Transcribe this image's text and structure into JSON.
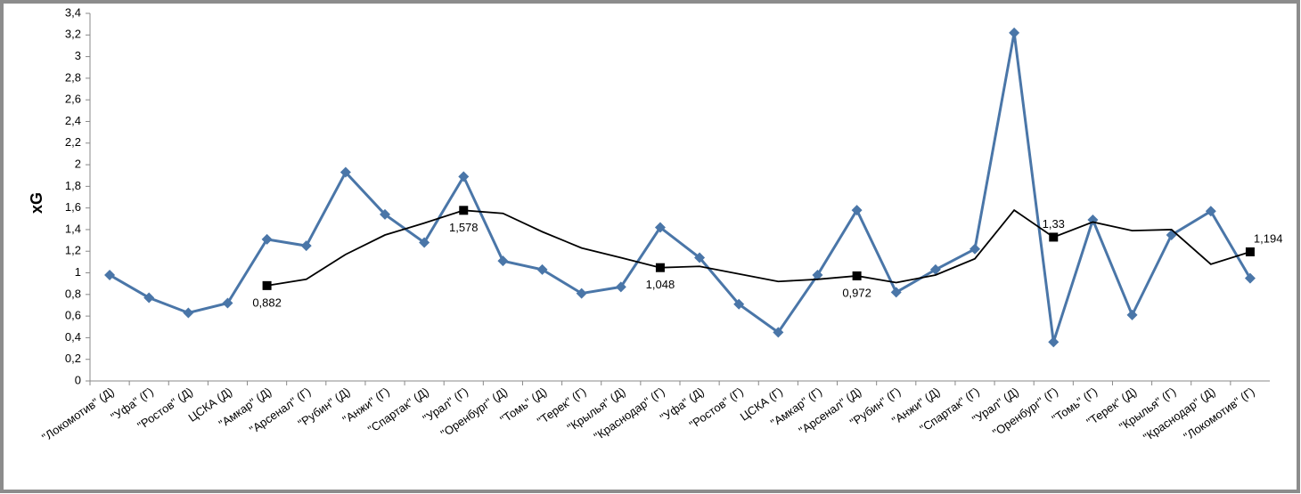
{
  "chart_data": {
    "type": "line",
    "y_label": "xG",
    "categories": [
      "\"Локомотив\" (Д)",
      "\"Уфа\" (Г)",
      "\"Ростов\" (Д)",
      "ЦСКА (Д)",
      "\"Амкар\" (Д)",
      "\"Арсенал\" (Г)",
      "\"Рубин\" (Д)",
      "\"Анжи\" (Г)",
      "\"Спартак\" (Д)",
      "\"Урал\" (Г)",
      "\"Оренбург\" (Д)",
      "\"Томь\" (Д)",
      "\"Терек\" (Г)",
      "\"Крылья\" (Д)",
      "\"Краснодар\" (Г)",
      "\"Уфа\" (Д)",
      "\"Ростов\" (Г)",
      "ЦСКА (Г)",
      "\"Амкар\" (Г)",
      "\"Арсенал\" (Д)",
      "\"Рубин\" (Г)",
      "\"Анжи\" (Д)",
      "\"Спартак\" (Г)",
      "\"Урал\" (Д)",
      "\"Оренбург\" (Г)",
      "\"Томь\" (Г)",
      "\"Терек\" (Д)",
      "\"Крылья\" (Г)",
      "\"Краснодар\" (Д)",
      "\"Локомотив\" (Г)"
    ],
    "series": [
      {
        "color": "#4a76a8",
        "marker": "diamond",
        "values": [
          0.98,
          0.77,
          0.63,
          0.72,
          1.31,
          1.25,
          1.93,
          1.54,
          1.28,
          1.89,
          1.11,
          1.03,
          0.81,
          0.87,
          1.42,
          1.14,
          0.71,
          0.45,
          0.98,
          1.58,
          0.82,
          1.03,
          1.22,
          3.22,
          0.36,
          1.49,
          0.61,
          1.35,
          1.57,
          0.95
        ]
      },
      {
        "color": "#000000",
        "marker": "square",
        "values": [
          null,
          null,
          null,
          null,
          0.882,
          0.94,
          1.17,
          1.35,
          1.46,
          1.578,
          1.55,
          1.38,
          1.23,
          1.14,
          1.048,
          1.06,
          0.99,
          0.92,
          0.94,
          0.972,
          0.91,
          0.98,
          1.13,
          1.58,
          1.33,
          1.47,
          1.39,
          1.4,
          1.08,
          1.194
        ],
        "value_labels": [
          null,
          null,
          null,
          null,
          "0,882",
          null,
          null,
          null,
          null,
          "1,578",
          null,
          null,
          null,
          null,
          "1,048",
          null,
          null,
          null,
          null,
          "0,972",
          null,
          null,
          null,
          null,
          "1,33",
          null,
          null,
          null,
          null,
          "1,194"
        ]
      }
    ],
    "ylim": [
      0,
      3.4
    ],
    "yticks": [
      0,
      {
        "value": 0.2,
        "label": "0,2"
      },
      {
        "value": 0.4,
        "label": "0,4"
      },
      {
        "value": 0.6,
        "label": "0,6"
      },
      {
        "value": 0.8,
        "label": "0,8"
      },
      1,
      {
        "value": 1.2,
        "label": "1,2"
      },
      {
        "value": 1.4,
        "label": "1,4"
      },
      {
        "value": 1.6,
        "label": "1,6"
      },
      {
        "value": 1.8,
        "label": "1,8"
      },
      2,
      {
        "value": 2.2,
        "label": "2,2"
      },
      {
        "value": 2.4,
        "label": "2,4"
      },
      {
        "value": 2.6,
        "label": "2,6"
      },
      {
        "value": 2.8,
        "label": "2,8"
      },
      3,
      {
        "value": 3.2,
        "label": "3,2"
      },
      {
        "value": 3.4,
        "label": "3,4"
      }
    ]
  }
}
